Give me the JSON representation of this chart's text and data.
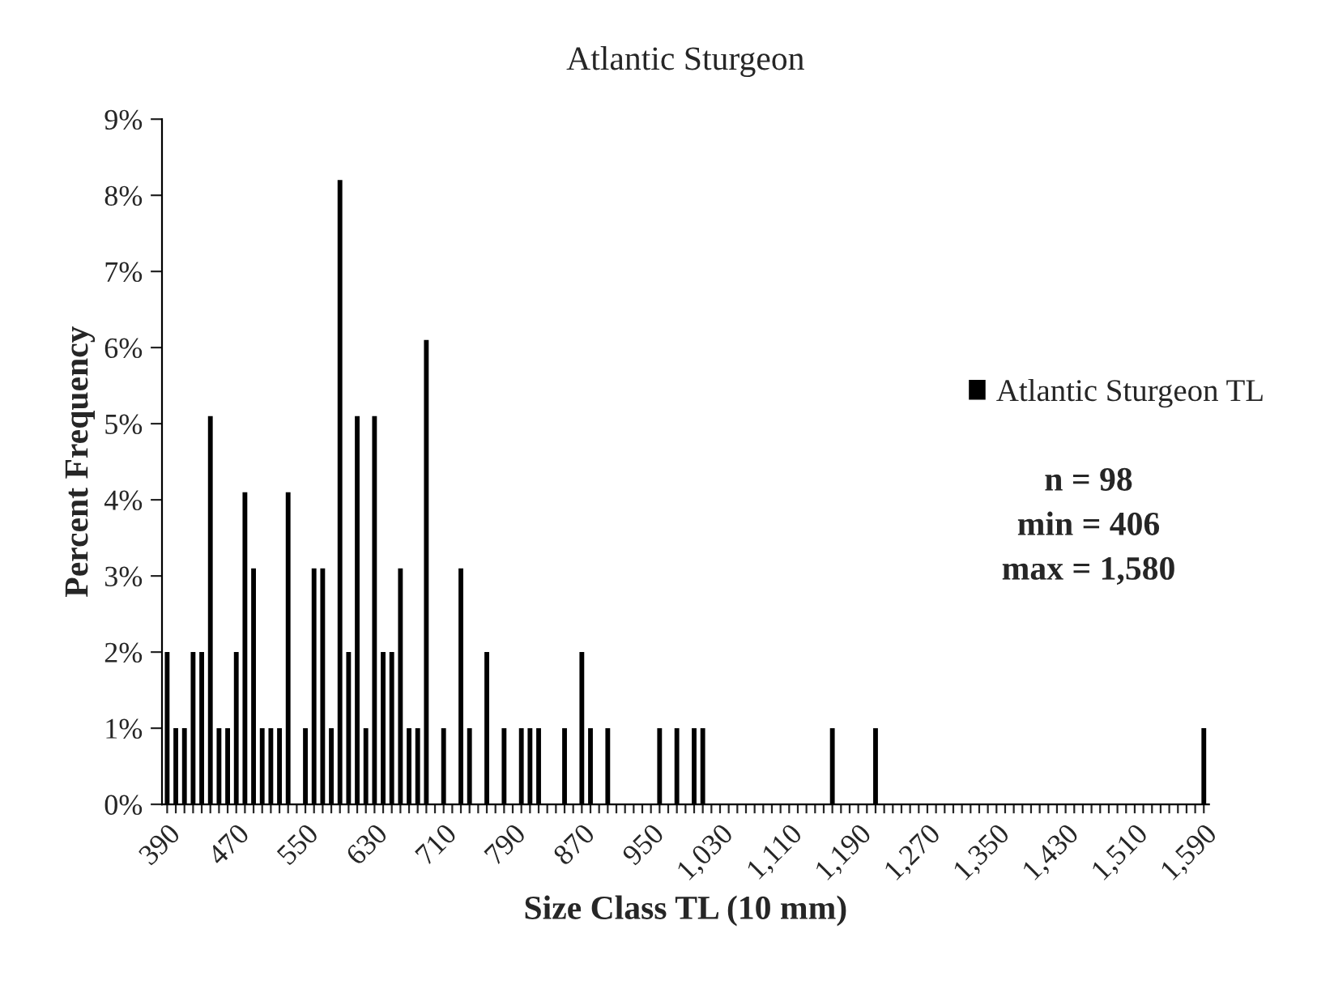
{
  "chart_data": {
    "type": "bar",
    "title": "Atlantic Sturgeon",
    "xlabel": "Size Class TL (10 mm)",
    "ylabel": "Percent Frequency",
    "categories": [
      "390",
      null,
      null,
      null,
      null,
      null,
      null,
      null,
      "470",
      null,
      null,
      null,
      null,
      null,
      null,
      null,
      "550",
      null,
      null,
      null,
      null,
      null,
      null,
      null,
      "630",
      null,
      null,
      null,
      null,
      null,
      null,
      null,
      "710",
      null,
      null,
      null,
      null,
      null,
      null,
      null,
      "790",
      null,
      null,
      null,
      null,
      null,
      null,
      null,
      "870",
      null,
      null,
      null,
      null,
      null,
      null,
      null,
      "950",
      null,
      null,
      null,
      null,
      null,
      null,
      null,
      "1,030",
      null,
      null,
      null,
      null,
      null,
      null,
      null,
      "1,110",
      null,
      null,
      null,
      null,
      null,
      null,
      null,
      "1,190",
      null,
      null,
      null,
      null,
      null,
      null,
      null,
      "1,270",
      null,
      null,
      null,
      null,
      null,
      null,
      null,
      "1,350",
      null,
      null,
      null,
      null,
      null,
      null,
      null,
      "1,430",
      null,
      null,
      null,
      null,
      null,
      null,
      null,
      "1,510",
      null,
      null,
      null,
      null,
      null,
      null,
      null,
      "1,590"
    ],
    "series": [
      {
        "name": "Atlantic Sturgeon TL",
        "color": "#000000",
        "values": [
          2.0,
          1.0,
          1.0,
          2.0,
          2.0,
          5.1,
          1.0,
          1.0,
          2.0,
          4.1,
          3.1,
          1.0,
          1.0,
          1.0,
          4.1,
          0,
          1.0,
          3.1,
          3.1,
          1.0,
          8.2,
          2.0,
          5.1,
          1.0,
          5.1,
          2.0,
          2.0,
          3.1,
          1.0,
          1.0,
          6.1,
          0,
          1.0,
          0,
          3.1,
          1.0,
          0,
          2.0,
          0,
          1.0,
          0,
          1.0,
          1.0,
          1.0,
          0,
          0,
          1.0,
          0,
          2.0,
          1.0,
          0,
          1.0,
          0,
          0,
          0,
          0,
          0,
          1.0,
          0,
          1.0,
          0,
          1.0,
          1.0,
          0,
          0,
          0,
          0,
          0,
          0,
          0,
          0,
          0,
          0,
          0,
          0,
          0,
          0,
          1.0,
          0,
          0,
          0,
          0,
          1.0,
          0,
          0,
          0,
          0,
          0,
          0,
          0,
          0,
          0,
          0,
          0,
          0,
          0,
          0,
          0,
          0,
          0,
          0,
          0,
          0,
          0,
          0,
          0,
          0,
          0,
          0,
          0,
          0,
          0,
          0,
          0,
          0,
          0,
          0,
          0,
          0,
          0,
          1.0
        ]
      }
    ],
    "ylim": [
      0,
      9
    ],
    "yticks": [
      {
        "value": 0,
        "label": "0%"
      },
      {
        "value": 1,
        "label": "1%"
      },
      {
        "value": 2,
        "label": "2%"
      },
      {
        "value": 3,
        "label": "3%"
      },
      {
        "value": 4,
        "label": "4%"
      },
      {
        "value": 5,
        "label": "5%"
      },
      {
        "value": 6,
        "label": "6%"
      },
      {
        "value": 7,
        "label": "7%"
      },
      {
        "value": 8,
        "label": "8%"
      },
      {
        "value": 9,
        "label": "9%"
      }
    ],
    "legend": "right",
    "annotations": [
      "n = 98",
      "min = 406",
      "max = 1,580"
    ]
  }
}
